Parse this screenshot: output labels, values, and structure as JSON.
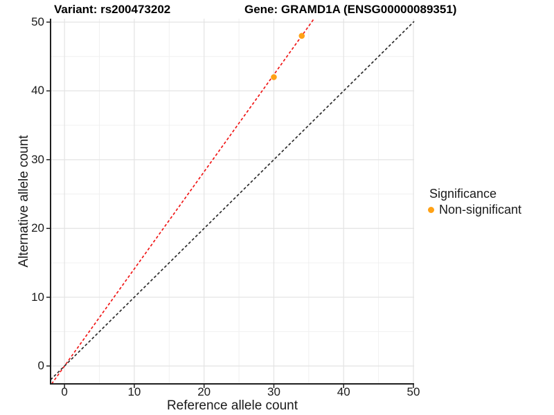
{
  "titles": {
    "variant": "Variant: rs200473202",
    "gene": "Gene: GRAMD1A (ENSG00000089351)"
  },
  "chart_data": {
    "type": "scatter",
    "title": "Variant: rs200473202   Gene: GRAMD1A (ENSG00000089351)",
    "xlabel": "Reference allele count",
    "ylabel": "Alternative allele count",
    "xlim": [
      -2,
      50.1
    ],
    "ylim": [
      -2.6,
      50.5
    ],
    "x_ticks": [
      0,
      10,
      20,
      30,
      40,
      50
    ],
    "y_ticks": [
      0,
      10,
      20,
      30,
      40,
      50
    ],
    "x_minor": [
      5,
      15,
      25,
      35,
      45
    ],
    "y_minor": [
      5,
      15,
      25,
      35,
      45
    ],
    "grid_on": true,
    "points": [
      {
        "x": 30,
        "y": 42,
        "series": "Non-significant"
      },
      {
        "x": 34,
        "y": 48,
        "series": "Non-significant"
      }
    ],
    "point_color": "#FFA115",
    "point_radius": 4.3,
    "lines": [
      {
        "name": "fitted-line",
        "slope": 1.412,
        "intercept": 0,
        "color": "#F01616",
        "dash": "4,3",
        "width": 1.7
      },
      {
        "name": "identity-line",
        "slope": 1,
        "intercept": 0,
        "color": "#2b2b2b",
        "dash": "4,3",
        "width": 1.7
      }
    ],
    "legend": {
      "title": "Significance",
      "position": "right",
      "items": [
        {
          "label": "Non-significant",
          "color": "#FFA115"
        }
      ]
    },
    "colors": {
      "grid_major": "#e3e3e3",
      "grid_minor": "#f0f0f0",
      "axis": "#1f1f1f",
      "background": "#ffffff"
    }
  }
}
